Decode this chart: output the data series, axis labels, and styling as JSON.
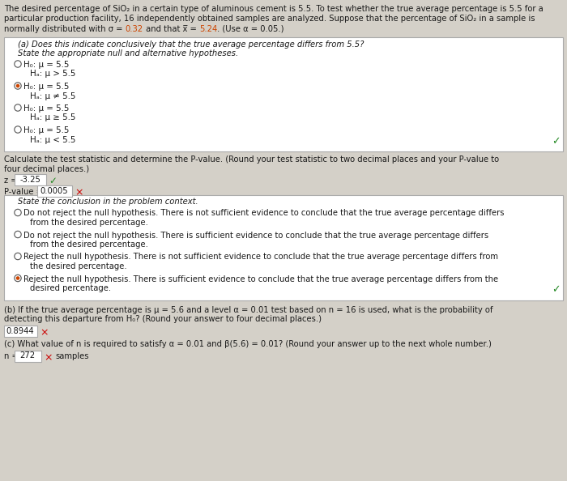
{
  "bg_color": "#d4d0c8",
  "title_line1": "The desired percentage of SiO₂ in a certain type of aluminous cement is 5.5. To test whether the true average percentage is 5.5 for a",
  "title_line2": "particular production facility, 16 independently obtained samples are analyzed. Suppose that the percentage of SiO₂ in a sample is",
  "title_line3_p1": "normally distributed with σ = ",
  "title_line3_c1": "0.32",
  "title_line3_p2": " and that x̅ = ",
  "title_line3_c2": "5.24",
  "title_line3_p3": ". (Use α = 0.05.)",
  "highlight_color": "#cc4400",
  "radio_options": [
    {
      "selected": false,
      "line1": "H₀: μ = 5.5",
      "line2": "Hₐ: μ > 5.5"
    },
    {
      "selected": true,
      "line1": "H₀: μ = 5.5",
      "line2": "Hₐ: μ ≠ 5.5"
    },
    {
      "selected": false,
      "line1": "H₀: μ = 5.5",
      "line2": "Hₐ: μ ≥ 5.5"
    },
    {
      "selected": false,
      "line1": "H₀: μ = 5.5",
      "line2": "Hₐ: μ < 5.5"
    }
  ],
  "z_value": "-3.25",
  "pval_value": "0.0005",
  "conclusion_options": [
    {
      "selected": false,
      "line1": "Do not reject the null hypothesis. There is not sufficient evidence to conclude that the true average percentage differs",
      "line2": "from the desired percentage."
    },
    {
      "selected": false,
      "line1": "Do not reject the null hypothesis. There is sufficient evidence to conclude that the true average percentage differs",
      "line2": "from the desired percentage."
    },
    {
      "selected": false,
      "line1": "Reject the null hypothesis. There is not sufficient evidence to conclude that the true average percentage differs from",
      "line2": "the desired percentage."
    },
    {
      "selected": true,
      "line1": "Reject the null hypothesis. There is sufficient evidence to conclude that the true average percentage differs from the",
      "line2": "desired percentage."
    }
  ],
  "b_value": "0.8944",
  "c_value": "272",
  "green_color": "#228822",
  "red_color": "#cc0000",
  "box_edge_color": "#aaaaaa",
  "text_color": "#1a1a1a"
}
